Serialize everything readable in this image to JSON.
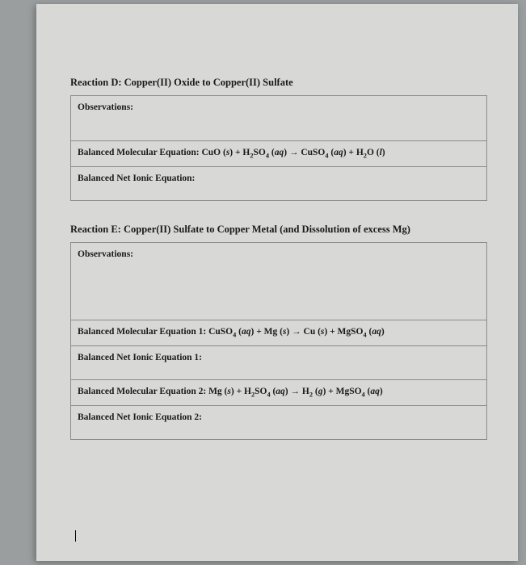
{
  "reactionD": {
    "title": "Reaction D: Copper(II) Oxide to Copper(II) Sulfate",
    "observations_label": "Observations:",
    "mol_eq_label": "Balanced Molecular Equation:",
    "mol_eq_parts": [
      "CuO (",
      "s",
      ")  +  H",
      "2",
      "SO",
      "4",
      " (",
      "aq",
      ")  ",
      "→",
      "  CuSO",
      "4",
      " (",
      "aq",
      ")  +  H",
      "2",
      "O (",
      "l",
      ")"
    ],
    "net_label": "Balanced Net Ionic Equation:"
  },
  "reactionE": {
    "title": "Reaction E: Copper(II) Sulfate to Copper Metal (and Dissolution of excess Mg)",
    "observations_label": "Observations:",
    "mol_eq1_label": "Balanced Molecular Equation 1:",
    "mol_eq1_parts": [
      "CuSO",
      "4",
      " (",
      "aq",
      ")  +  Mg (",
      "s",
      ")  ",
      "→",
      "  Cu (",
      "s",
      ")  +  MgSO",
      "4",
      " (",
      "aq",
      ")"
    ],
    "net1_label": "Balanced Net Ionic Equation 1:",
    "mol_eq2_label": "Balanced Molecular Equation 2:",
    "mol_eq2_parts": [
      "Mg (",
      "s",
      ")  +  H",
      "2",
      "SO",
      "4",
      " (",
      "aq",
      ")  ",
      "→",
      "  H",
      "2",
      " (",
      "g",
      ")  +  MgSO",
      "4",
      " (",
      "aq",
      ")"
    ],
    "net2_label": "Balanced Net Ionic Equation 2:"
  },
  "colors": {
    "page_bg": "#d8d8d6",
    "outer_bg": "#9a9e9f",
    "border": "#8b8b88",
    "text": "#1a1a1a"
  }
}
